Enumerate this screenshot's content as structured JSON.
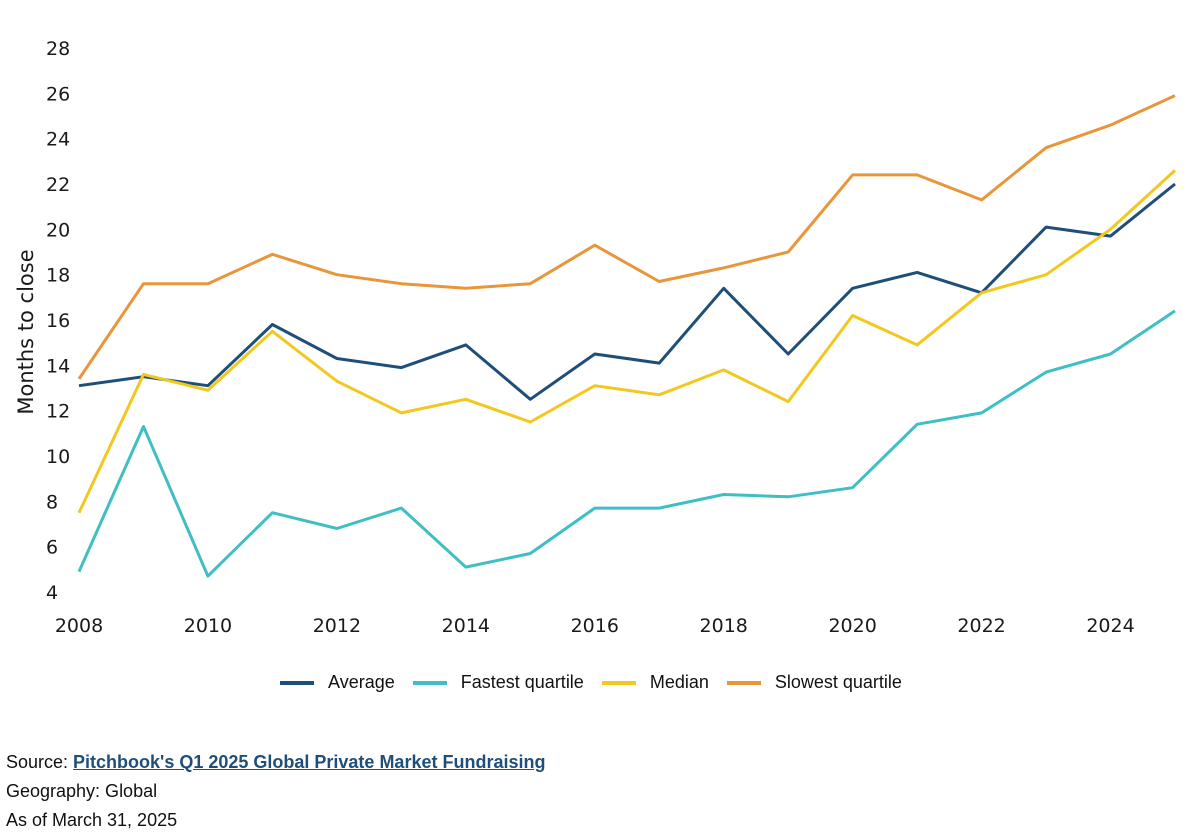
{
  "chart_data": {
    "type": "line",
    "ylabel": "Months to close",
    "xlabel": "",
    "x": [
      2008,
      2009,
      2010,
      2011,
      2012,
      2013,
      2014,
      2015,
      2016,
      2017,
      2018,
      2019,
      2020,
      2021,
      2022,
      2023,
      2024,
      2025
    ],
    "xticks": [
      2008,
      2010,
      2012,
      2014,
      2016,
      2018,
      2020,
      2022,
      2024
    ],
    "yticks": [
      4,
      6,
      8,
      10,
      12,
      14,
      16,
      18,
      20,
      22,
      24,
      26,
      28
    ],
    "xlim": [
      2008,
      2025
    ],
    "ylim": [
      4,
      28
    ],
    "grid": false,
    "legend_position": "bottom",
    "series": [
      {
        "name": "Average",
        "color": "#1f4e79",
        "values": [
          13.1,
          13.5,
          13.1,
          15.8,
          14.3,
          13.9,
          14.9,
          12.5,
          14.5,
          14.1,
          17.4,
          14.5,
          17.4,
          18.1,
          17.2,
          20.1,
          19.7,
          22.0
        ]
      },
      {
        "name": "Fastest quartile",
        "color": "#3fbfc4",
        "values": [
          4.9,
          11.3,
          4.7,
          7.5,
          6.8,
          7.7,
          5.1,
          5.7,
          7.7,
          7.7,
          8.3,
          8.2,
          8.6,
          11.4,
          11.9,
          13.7,
          14.5,
          16.4
        ]
      },
      {
        "name": "Median",
        "color": "#f2c81e",
        "values": [
          7.5,
          13.6,
          12.9,
          15.5,
          13.3,
          11.9,
          12.5,
          11.5,
          13.1,
          12.7,
          13.8,
          12.4,
          16.2,
          14.9,
          17.2,
          18.0,
          20.0,
          22.6
        ]
      },
      {
        "name": "Slowest quartile",
        "color": "#e8963a",
        "values": [
          13.4,
          17.6,
          17.6,
          18.9,
          18.0,
          17.6,
          17.4,
          17.6,
          19.3,
          17.7,
          18.3,
          19.0,
          22.4,
          22.4,
          21.3,
          23.6,
          24.6,
          25.9
        ]
      }
    ]
  },
  "footer": {
    "source_prefix": "Source: ",
    "source_link": "Pitchbook's Q1 2025 Global Private Market Fundraising",
    "geography": "Geography: Global",
    "as_of": "As of March 31, 2025"
  }
}
